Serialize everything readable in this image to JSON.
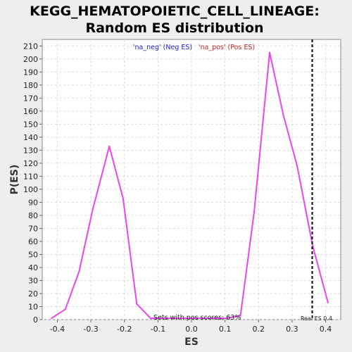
{
  "chart_data": {
    "type": "line",
    "title_line1": "KEGG_HEMATOPOIETIC_CELL_LINEAGE:",
    "title_line2": "Random ES distribution",
    "xlabel": "ES",
    "ylabel": "P(ES)",
    "xlim": [
      -0.445,
      0.445
    ],
    "ylim": [
      0,
      215
    ],
    "x_ticks": [
      -0.4,
      -0.3,
      -0.2,
      -0.1,
      0.0,
      0.1,
      0.2,
      0.3,
      0.4
    ],
    "x_tick_labels": [
      "-0.4",
      "-0.3",
      "-0.2",
      "-0.1",
      "0.0",
      "0.1",
      "0.2",
      "0.3",
      "0.4"
    ],
    "y_ticks": [
      0,
      10,
      20,
      30,
      40,
      50,
      60,
      70,
      80,
      90,
      100,
      110,
      120,
      130,
      140,
      150,
      160,
      170,
      180,
      190,
      200,
      210
    ],
    "grid": true,
    "legend": {
      "neg_label": "'na_neg' (Neg ES)",
      "pos_label": "'na_pos' (Pos ES)",
      "placement": "top-center"
    },
    "series": [
      {
        "color": "#ee44ee",
        "x": [
          -0.417,
          -0.376,
          -0.335,
          -0.294,
          -0.245,
          -0.204,
          -0.163,
          -0.122,
          0.104,
          0.146,
          0.187,
          0.233,
          0.274,
          0.315,
          0.361,
          0.407
        ],
        "y": [
          1,
          8,
          37,
          85,
          133,
          93,
          12,
          1,
          1,
          3,
          83,
          205,
          157,
          118,
          57,
          13
        ]
      }
    ],
    "real_es": 0.36,
    "real_es_label": "Real ES 0.4",
    "annotation": "Sets with pos scores: 63%"
  }
}
